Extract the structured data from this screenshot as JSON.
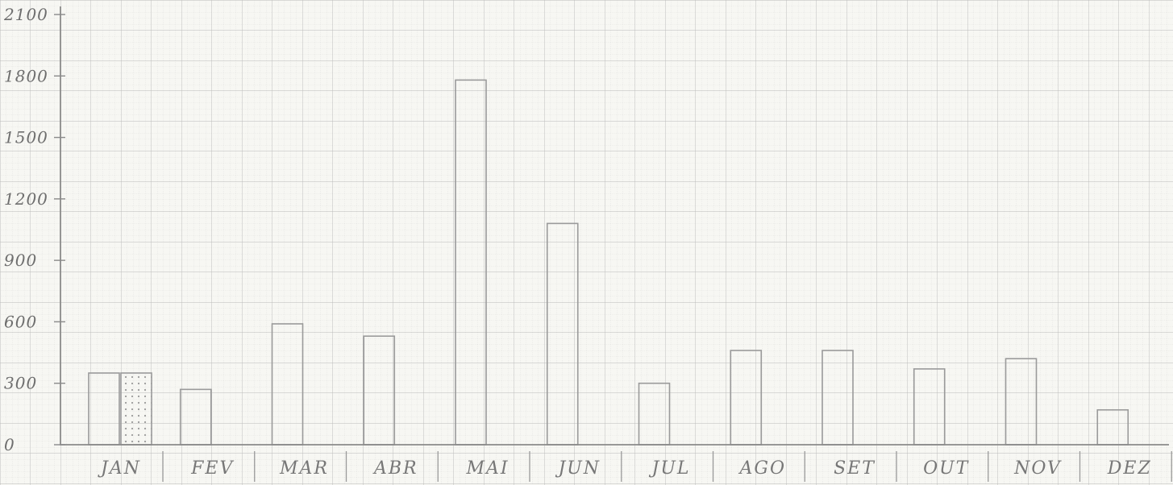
{
  "chart_data": {
    "type": "bar",
    "title": "",
    "xlabel": "",
    "ylabel": "",
    "ylim": [
      0,
      2100
    ],
    "y_ticks": [
      "0",
      "300",
      "600",
      "900",
      "1200",
      "1500",
      "1800",
      "2100"
    ],
    "y_tick_values": [
      0,
      300,
      600,
      900,
      1200,
      1500,
      1800,
      2100
    ],
    "categories": [
      "JAN",
      "FEV",
      "MAR",
      "ABR",
      "MAI",
      "JUN",
      "JUL",
      "AGO",
      "SET",
      "OUT",
      "NOV",
      "DEZ"
    ],
    "series": [
      {
        "values": [
          350,
          270,
          590,
          530,
          1780,
          1080,
          300,
          460,
          460,
          370,
          420,
          170
        ]
      },
      {
        "values": [
          350,
          null,
          null,
          null,
          null,
          null,
          null,
          null,
          null,
          null,
          null,
          null
        ],
        "pattern": "dotted"
      }
    ],
    "grid": true,
    "background": "#f7f7f3",
    "grid_color": "#c9c9c9",
    "bar_stroke": "#9a9a9a"
  }
}
